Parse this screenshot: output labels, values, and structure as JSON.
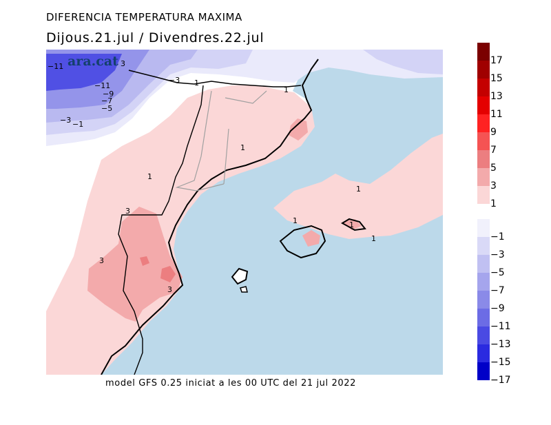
{
  "title": "DIFERENCIA TEMPERATURA MAXIMA",
  "subtitle": "Dijous.21.jul  /  Divendres.22.jul",
  "logo_text": "ara.cat",
  "footer": "model GFS 0.25 iniciat a les 00 UTC del 21 jul 2022",
  "colors": {
    "sea": "#bcd9ea",
    "land_base": "#ffffff",
    "warm_1": "#fbd7d7",
    "warm_3": "#f3aaab",
    "warm_5": "#ec7e80",
    "cold_1": "#eaeafb",
    "cold_3": "#d3d3f6",
    "cold_5": "#b9b9f0",
    "cold_7": "#9494ea",
    "cold_11": "#5050e4"
  },
  "legend": {
    "warm": [
      {
        "label": "17",
        "color": "#7b0000"
      },
      {
        "label": "15",
        "color": "#a00000"
      },
      {
        "label": "13",
        "color": "#c40000"
      },
      {
        "label": "11",
        "color": "#e40000"
      },
      {
        "label": "9",
        "color": "#ff2222"
      },
      {
        "label": "7",
        "color": "#f55353"
      },
      {
        "label": "5",
        "color": "#ec7e80"
      },
      {
        "label": "3",
        "color": "#f3aaab"
      },
      {
        "label": "1",
        "color": "#fbd7d7"
      }
    ],
    "cold": [
      {
        "label": "−1",
        "color": "#f1f1fc"
      },
      {
        "label": "−3",
        "color": "#d9d9f7"
      },
      {
        "label": "−5",
        "color": "#c0c0f2"
      },
      {
        "label": "−7",
        "color": "#a5a5ed"
      },
      {
        "label": "−9",
        "color": "#8a8ae8"
      },
      {
        "label": "−11",
        "color": "#6c6ce5"
      },
      {
        "label": "−13",
        "color": "#4a4ae3"
      },
      {
        "label": "−15",
        "color": "#2a2ae0"
      },
      {
        "label": "−17",
        "color": "#0000c8"
      }
    ]
  },
  "contour_labels": [
    {
      "text": "1"
    },
    {
      "text": "1"
    },
    {
      "text": "1"
    },
    {
      "text": "1"
    },
    {
      "text": "1"
    },
    {
      "text": "1"
    },
    {
      "text": "1"
    },
    {
      "text": "1"
    },
    {
      "text": "3"
    },
    {
      "text": "3"
    },
    {
      "text": "3"
    },
    {
      "text": "−3"
    },
    {
      "text": "−1"
    },
    {
      "text": "−3"
    },
    {
      "text": "−11"
    },
    {
      "text": "−11"
    },
    {
      "text": "−9"
    },
    {
      "text": "−7"
    },
    {
      "text": "−5"
    },
    {
      "text": "3"
    }
  ]
}
